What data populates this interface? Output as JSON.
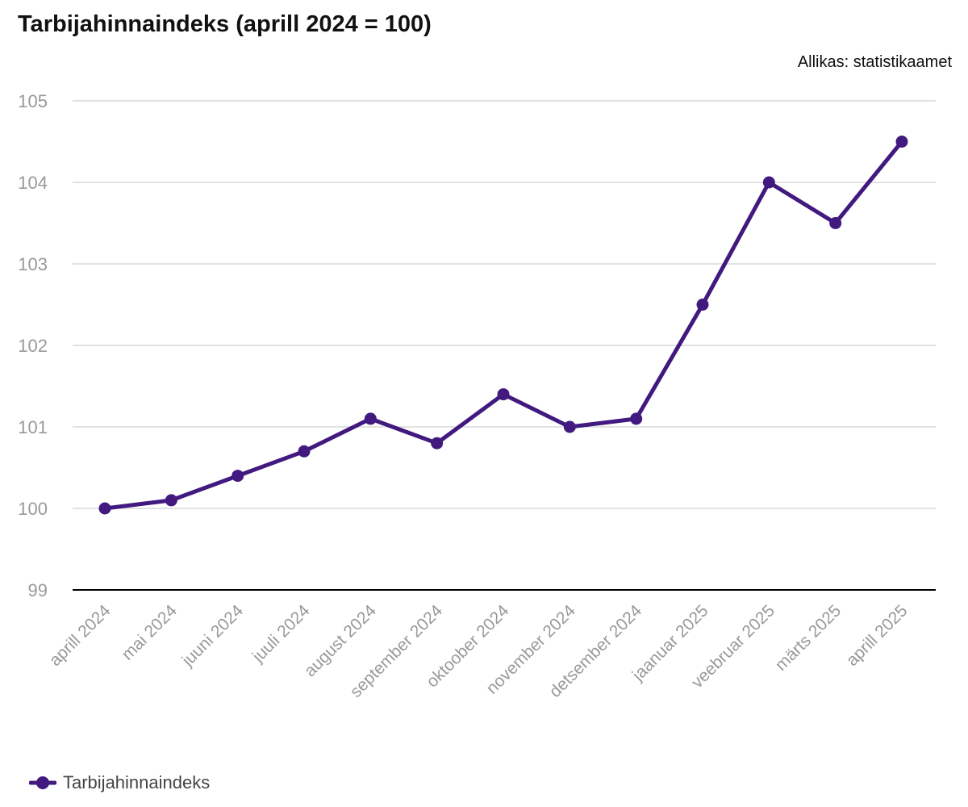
{
  "chart_data": {
    "type": "line",
    "title": "Tarbijahinnaindeks (aprill 2024 = 100)",
    "source": "Allikas: statistikaamet",
    "categories": [
      "aprill 2024",
      "mai 2024",
      "juuni 2024",
      "juuli 2024",
      "august 2024",
      "september 2024",
      "oktoober 2024",
      "november 2024",
      "detsember 2024",
      "jaanuar 2025",
      "veebruar 2025",
      "märts 2025",
      "aprill 2025"
    ],
    "series": [
      {
        "name": "Tarbijahinnaindeks",
        "values": [
          100.0,
          100.1,
          100.4,
          100.7,
          101.1,
          100.8,
          101.4,
          101.0,
          101.1,
          102.5,
          104.0,
          103.5,
          104.5
        ]
      }
    ],
    "ylim": [
      99,
      105
    ],
    "yticks": [
      "99",
      "100",
      "101",
      "102",
      "103",
      "104",
      "105"
    ],
    "grid": true,
    "legend_position": "bottom-left",
    "colors": {
      "series": "#41197f",
      "grid": "#d9d9d9",
      "axis": "#000000",
      "tick_label": "#999999"
    }
  }
}
